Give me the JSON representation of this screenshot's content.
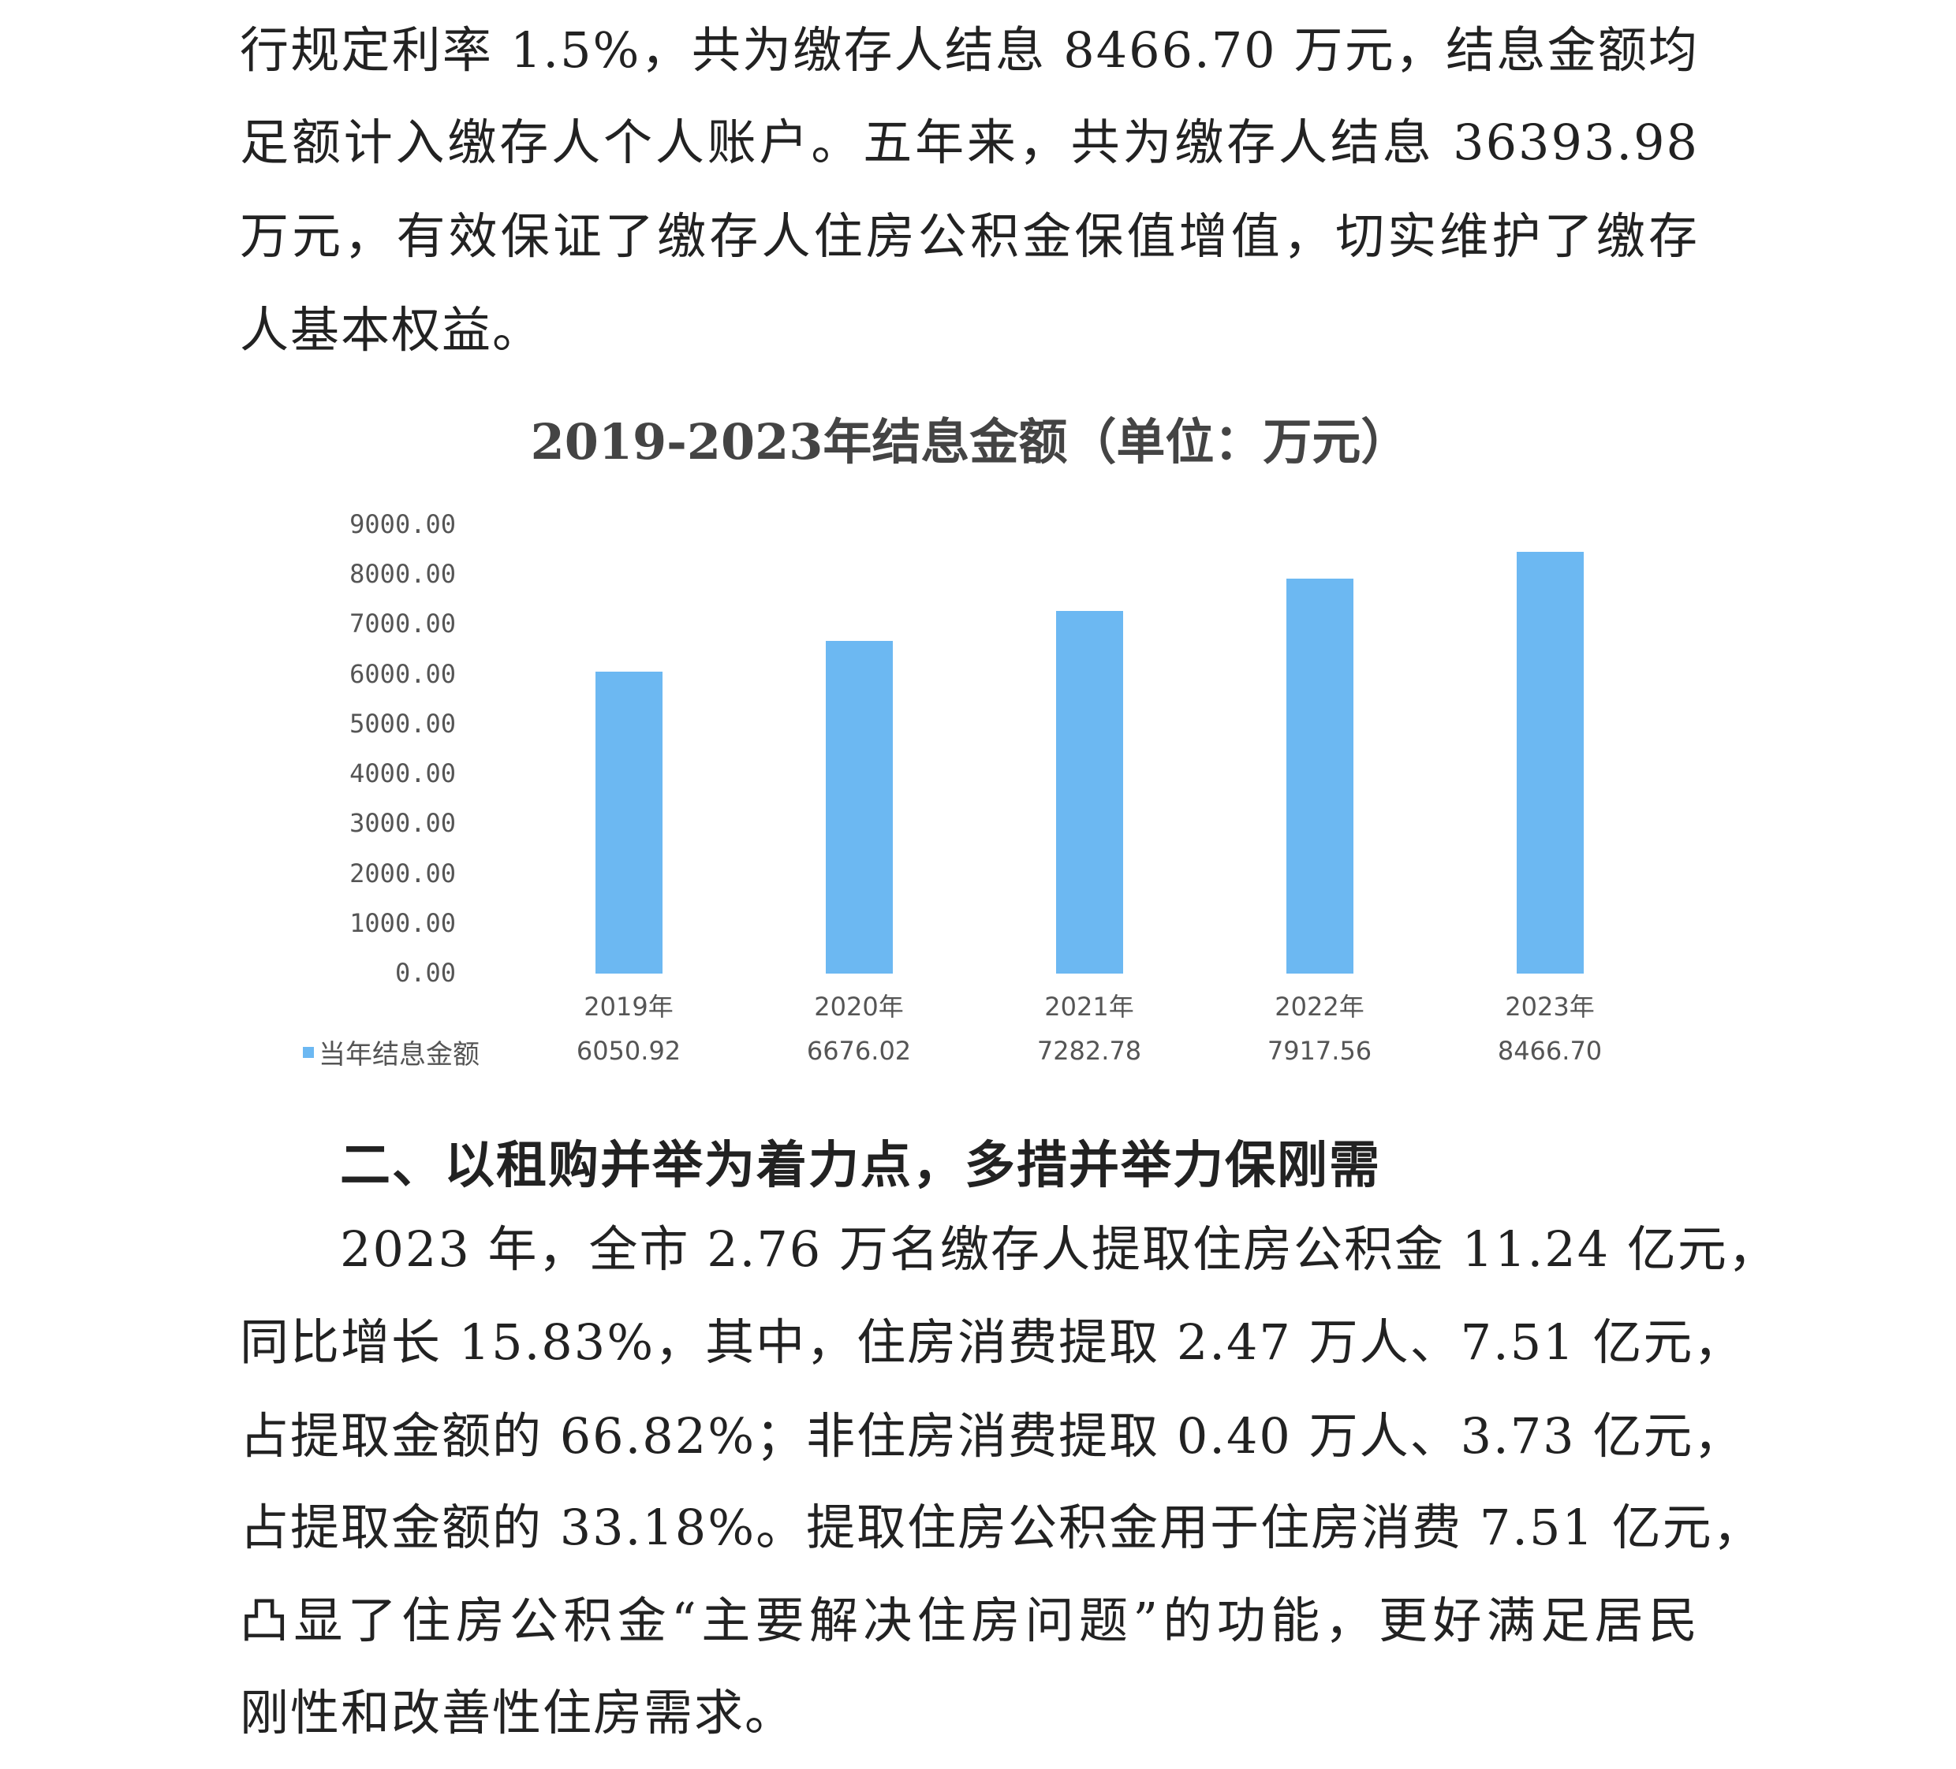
{
  "paragraph1": [
    "行规定利率 1.5%，共为缴存人结息 8466.70 万元，结息金额均",
    "足额计入缴存人个人账户。五年来，共为缴存人结息 36393.98",
    "万元，有效保证了缴存人住房公积金保值增值，切实维护了缴存",
    "人基本权益。"
  ],
  "chart_data": {
    "type": "bar",
    "title": "2019-2023年结息金额（单位：万元）",
    "categories": [
      "2019年",
      "2020年",
      "2021年",
      "2022年",
      "2023年"
    ],
    "series": [
      {
        "name": "当年结息金额",
        "values": [
          6050.92,
          6676.02,
          7282.78,
          7917.56,
          8466.7
        ]
      }
    ],
    "value_labels": [
      "6050.92",
      "6676.02",
      "7282.78",
      "7917.56",
      "8466.70"
    ],
    "yticks": [
      "0.00",
      "1000.00",
      "2000.00",
      "3000.00",
      "4000.00",
      "5000.00",
      "6000.00",
      "7000.00",
      "8000.00",
      "9000.00"
    ],
    "ylim": [
      0,
      9000
    ],
    "grid": false,
    "legend": "bottom-left, data table row",
    "bar_color": "#6cb8f2"
  },
  "heading2": "二、以租购并举为着力点，多措并举力保刚需",
  "paragraph2": [
    "2023 年，全市 2.76 万名缴存人提取住房公积金 11.24 亿元，",
    "同比增长 15.83%，其中，住房消费提取 2.47 万人、7.51 亿元，",
    "占提取金额的 66.82%；非住房消费提取 0.40 万人、3.73 亿元，",
    "占提取金额的 33.18%。提取住房公积金用于住房消费 7.51 亿元，",
    "凸显了住房公积金“主要解决住房问题”的功能，更好满足居民",
    "刚性和改善性住房需求。"
  ]
}
